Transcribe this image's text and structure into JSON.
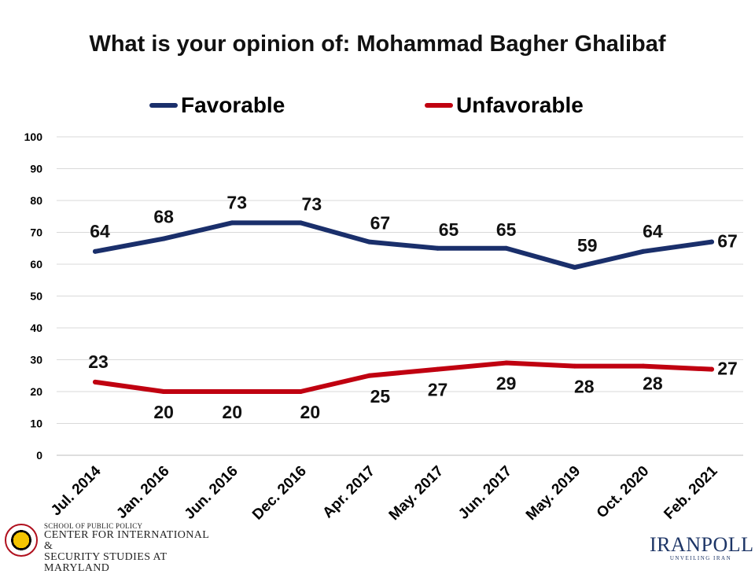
{
  "chart_data": {
    "type": "line",
    "title": "What is your opinion of: Mohammad Bagher Ghalibaf",
    "categories": [
      "Jul. 2014",
      "Jan. 2016",
      "Jun. 2016",
      "Dec. 2016",
      "Apr. 2017",
      "May. 2017",
      "Jun. 2017",
      "May. 2019",
      "Oct. 2020",
      "Feb. 2021"
    ],
    "series": [
      {
        "name": "Favorable",
        "color": "#1a2f6b",
        "values": [
          64,
          68,
          73,
          73,
          67,
          65,
          65,
          59,
          64,
          67
        ]
      },
      {
        "name": "Unfavorable",
        "color": "#c00010",
        "values": [
          23,
          20,
          20,
          20,
          25,
          27,
          29,
          28,
          28,
          27
        ]
      }
    ],
    "ylim": [
      0,
      100
    ],
    "yticks": [
      0,
      10,
      20,
      30,
      40,
      50,
      60,
      70,
      80,
      90,
      100
    ],
    "xlabel": "",
    "ylabel": "",
    "grid": true,
    "legend_position": "top"
  },
  "logos": {
    "left": {
      "line1": "SCHOOL OF PUBLIC POLICY",
      "line2": "CENTER FOR INTERNATIONAL &",
      "line3": "SECURITY STUDIES AT MARYLAND"
    },
    "right": {
      "name": "IRANPOLL",
      "tagline": "UNVEILING IRAN"
    }
  }
}
